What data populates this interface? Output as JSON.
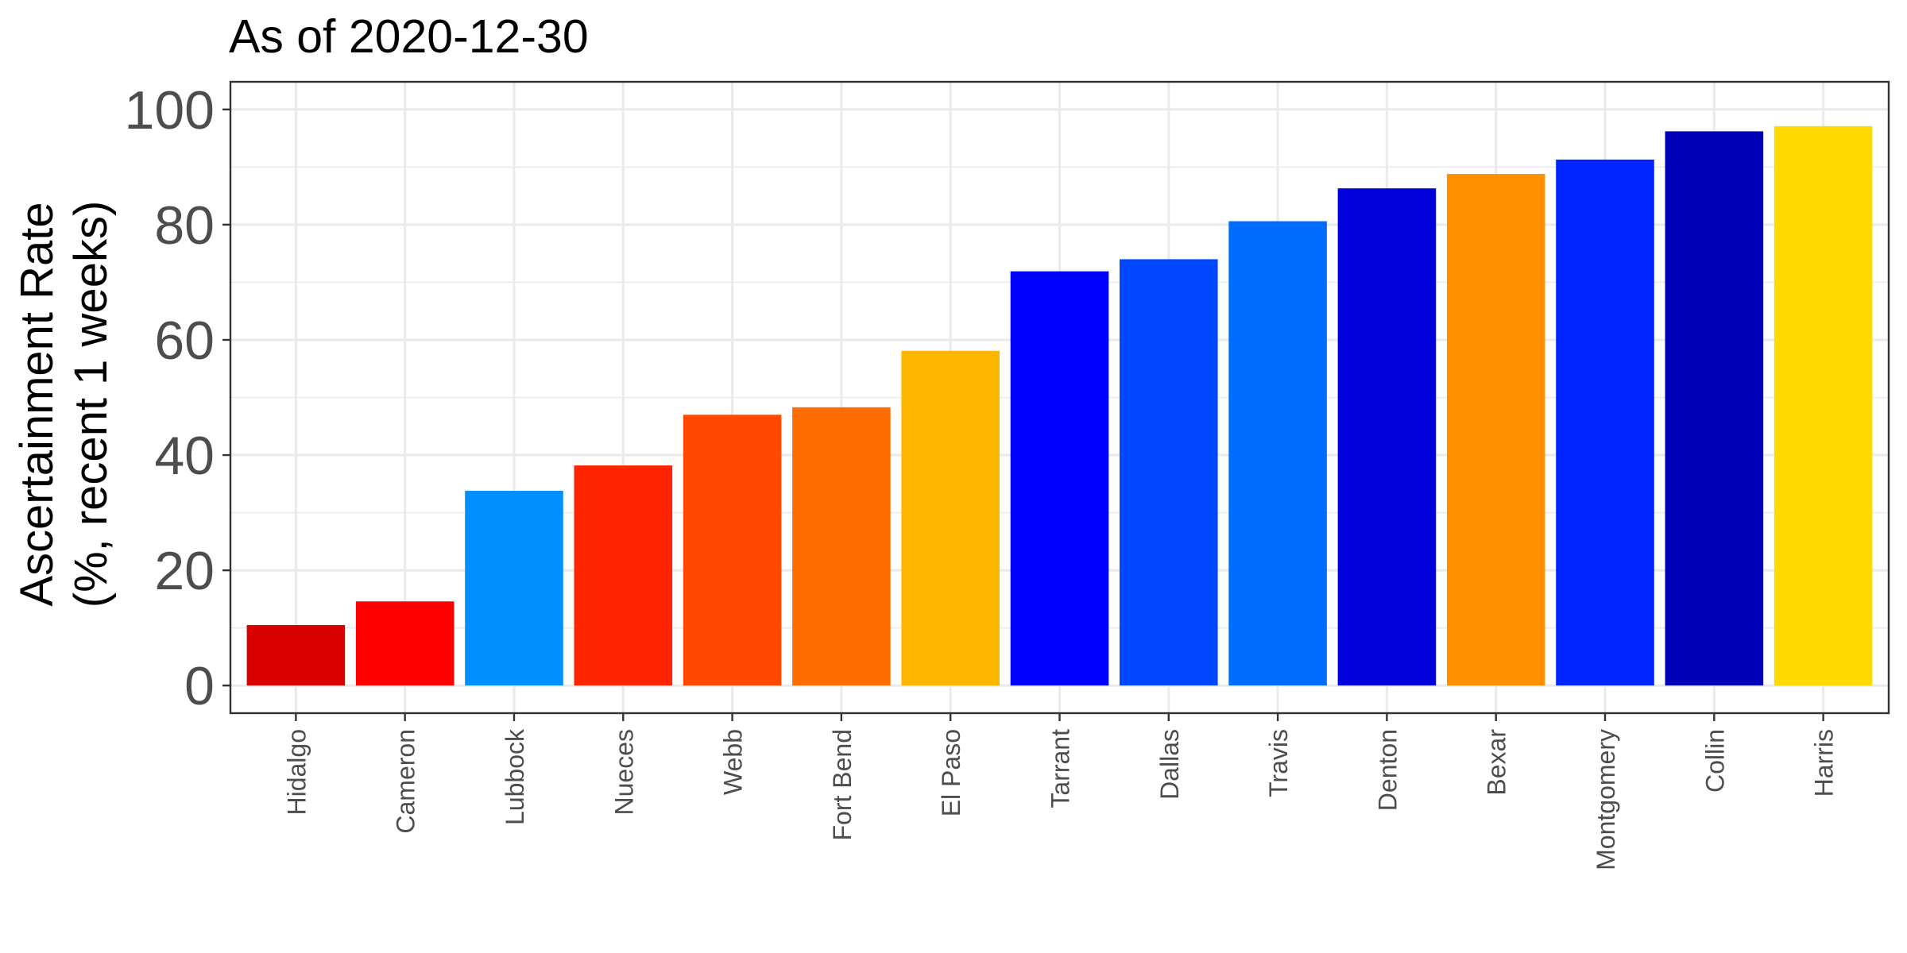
{
  "chart_data": {
    "type": "bar",
    "title": "As of 2020-12-30",
    "xlabel": "",
    "ylabel_lines": [
      "Ascertainment Rate",
      "(%, recent 1 weeks)"
    ],
    "categories": [
      "Hidalgo",
      "Cameron",
      "Lubbock",
      "Nueces",
      "Webb",
      "Fort Bend",
      "El Paso",
      "Tarrant",
      "Dallas",
      "Travis",
      "Denton",
      "Bexar",
      "Montgomery",
      "Collin",
      "Harris"
    ],
    "values": [
      10.5,
      14.6,
      33.8,
      38.2,
      47.0,
      48.3,
      58.1,
      71.9,
      74.0,
      80.6,
      86.3,
      88.8,
      91.3,
      96.2,
      97.1
    ],
    "colors": [
      "#d90000",
      "#ff0000",
      "#0091ff",
      "#ff2400",
      "#ff4800",
      "#ff6d00",
      "#ffb600",
      "#0000ff",
      "#0048ff",
      "#006dff",
      "#0000db",
      "#ff9100",
      "#0024ff",
      "#0000b6",
      "#ffda00"
    ],
    "ylim": [
      -4.8,
      104.8
    ],
    "yticks": [
      0,
      20,
      40,
      60,
      80,
      100
    ],
    "ytick_labels": [
      "0",
      "20",
      "40",
      "60",
      "80",
      "100"
    ],
    "grid": true,
    "legend": "none"
  }
}
